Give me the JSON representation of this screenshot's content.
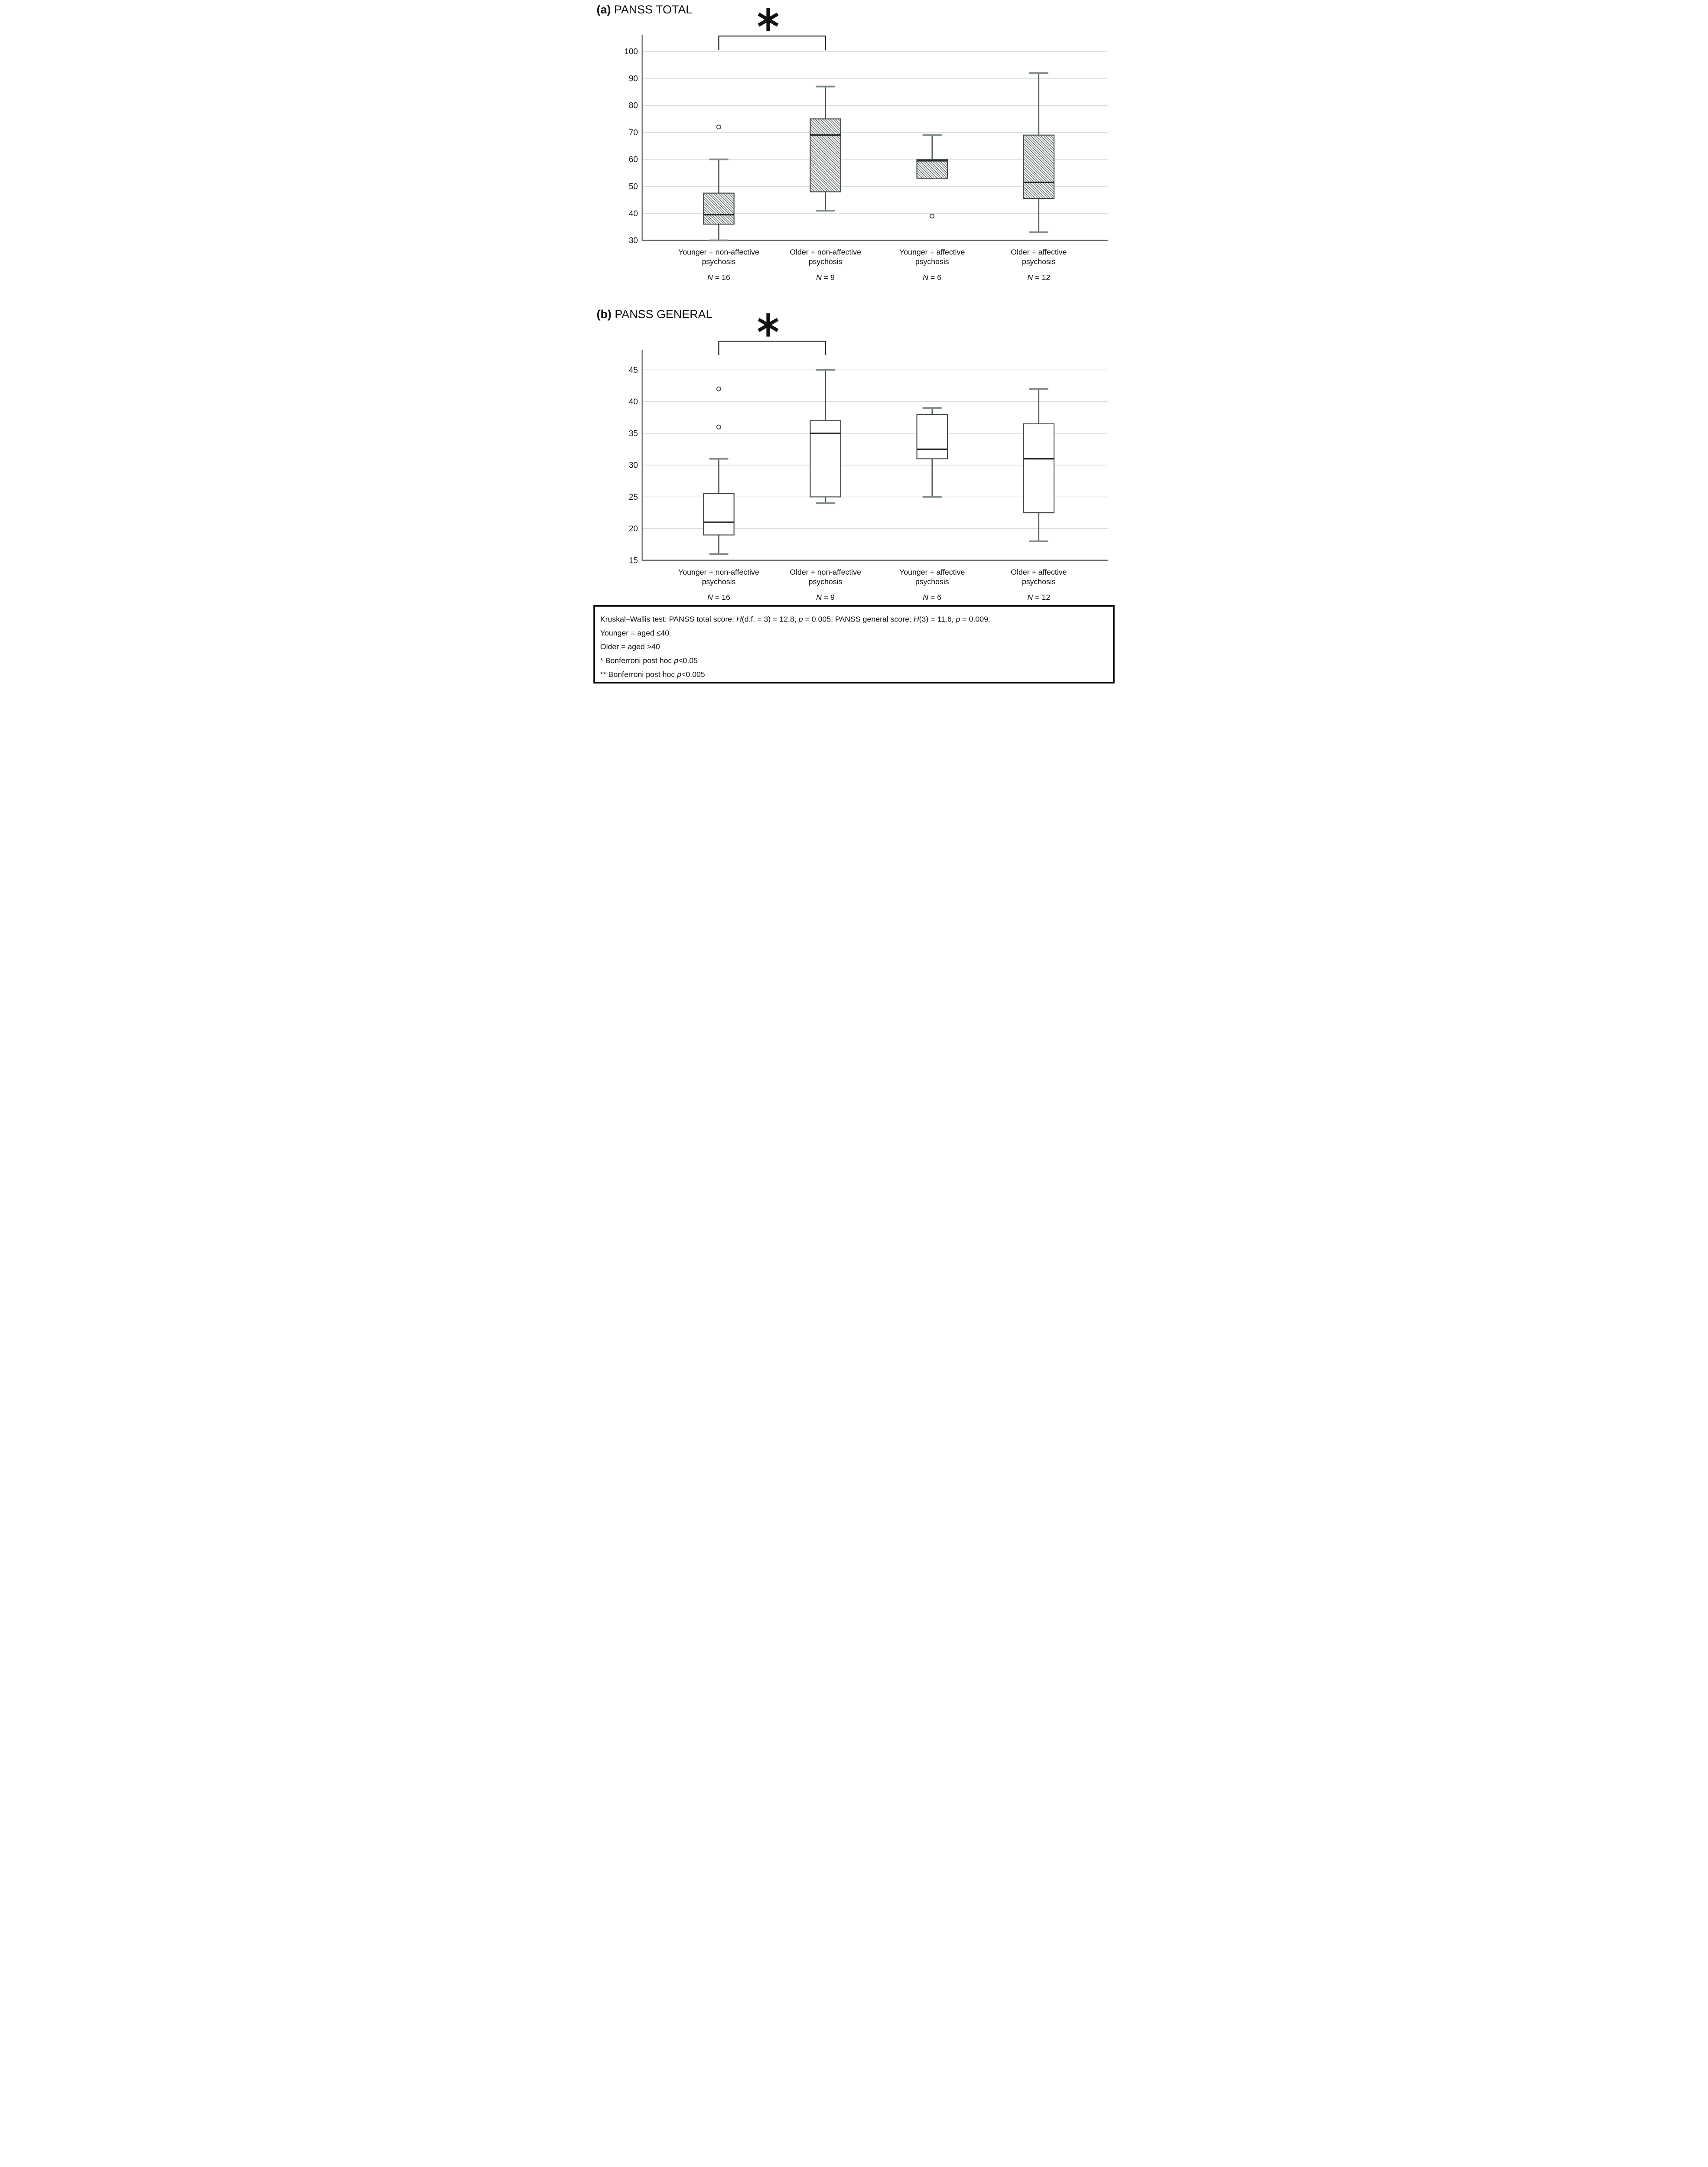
{
  "chart_data": [
    {
      "type": "box",
      "panel_label": "(a)",
      "title": "PANSS TOTAL",
      "ylim": [
        30,
        100
      ],
      "yticks": [
        100,
        90,
        80,
        70,
        60,
        50,
        40,
        30
      ],
      "grid": true,
      "box_fill": "hatched",
      "categories": [
        [
          "Younger + non-affective",
          "psychosis"
        ],
        [
          "Older + non-affective",
          "psychosis"
        ],
        [
          "Younger + affective",
          "psychosis"
        ],
        [
          "Older + affective",
          "psychosis"
        ]
      ],
      "n_labels": [
        "N = 16",
        "N = 9",
        "N = 6",
        "N = 12"
      ],
      "series": [
        {
          "name": "Younger + non-affective psychosis",
          "min": 30,
          "q1": 36,
          "median": 39.5,
          "q3": 47.5,
          "max": 60,
          "outliers": [
            72
          ]
        },
        {
          "name": "Older + non-affective psychosis",
          "min": 41,
          "q1": 48,
          "median": 69,
          "q3": 75,
          "max": 87,
          "outliers": []
        },
        {
          "name": "Younger + affective psychosis",
          "min": 53,
          "q1": 53,
          "median": 59.5,
          "q3": 60,
          "max": 69,
          "outliers": [
            39
          ]
        },
        {
          "name": "Older + affective psychosis",
          "min": 33,
          "q1": 45.5,
          "median": 51.5,
          "q3": 69,
          "max": 92,
          "outliers": []
        }
      ],
      "significance": {
        "pair": [
          0,
          1
        ],
        "symbol": "*"
      }
    },
    {
      "type": "box",
      "panel_label": "(b)",
      "title": "PANSS GENERAL",
      "ylim": [
        15,
        45
      ],
      "yticks": [
        45,
        40,
        35,
        30,
        25,
        20,
        15
      ],
      "grid": true,
      "box_fill": "white",
      "categories": [
        [
          "Younger + non-affective",
          "psychosis"
        ],
        [
          "Older + non-affective",
          "psychosis"
        ],
        [
          "Younger + affective",
          "psychosis"
        ],
        [
          "Older + affective",
          "psychosis"
        ]
      ],
      "n_labels": [
        "N = 16",
        "N = 9",
        "N = 6",
        "N = 12"
      ],
      "series": [
        {
          "name": "Younger + non-affective psychosis",
          "min": 16,
          "q1": 19,
          "median": 21,
          "q3": 25.5,
          "max": 31,
          "outliers": [
            36,
            42
          ]
        },
        {
          "name": "Older + non-affective psychosis",
          "min": 24,
          "q1": 25,
          "median": 35,
          "q3": 37,
          "max": 45,
          "outliers": []
        },
        {
          "name": "Younger + affective psychosis",
          "min": 25,
          "q1": 31,
          "median": 32.5,
          "q3": 38,
          "max": 39,
          "outliers": []
        },
        {
          "name": "Older + affective psychosis",
          "min": 18,
          "q1": 22.5,
          "median": 31,
          "q3": 36.5,
          "max": 42,
          "outliers": []
        }
      ],
      "significance": {
        "pair": [
          0,
          1
        ],
        "symbol": "*"
      }
    }
  ],
  "footnote": {
    "lines": [
      [
        {
          "t": "Kruskal–Wallis test: PANSS total score: "
        },
        {
          "t": "H",
          "i": true
        },
        {
          "t": "(d.f. = 3) = 12.8, "
        },
        {
          "t": "p",
          "i": true
        },
        {
          "t": " = 0.005; PANSS general score: "
        },
        {
          "t": "H",
          "i": true
        },
        {
          "t": "(3) = 11.6, "
        },
        {
          "t": "p",
          "i": true
        },
        {
          "t": " = 0.009."
        }
      ],
      [
        {
          "t": "Younger = aged ≤40"
        }
      ],
      [
        {
          "t": "Older = aged >40"
        }
      ],
      [
        {
          "t": "* Bonferroni post hoc "
        },
        {
          "t": "p",
          "i": true
        },
        {
          "t": "<0.05"
        }
      ],
      [
        {
          "t": "** Bonferroni post hoc "
        },
        {
          "t": "p",
          "i": true
        },
        {
          "t": "<0.005"
        }
      ]
    ]
  },
  "colors": {
    "background": "#ffffff",
    "grid": "#d8dddc",
    "axis": "#6e7b78",
    "baseline": "#5f6a67",
    "whisker": "#414c49",
    "whisker_cap": "#808b88",
    "box_border": "#3d4745",
    "median": "#23292c",
    "hatch": "#565e5c",
    "outlier": "#3a4442",
    "bracket": "#101010",
    "text": "#111111",
    "footnote_border": "#000000"
  }
}
